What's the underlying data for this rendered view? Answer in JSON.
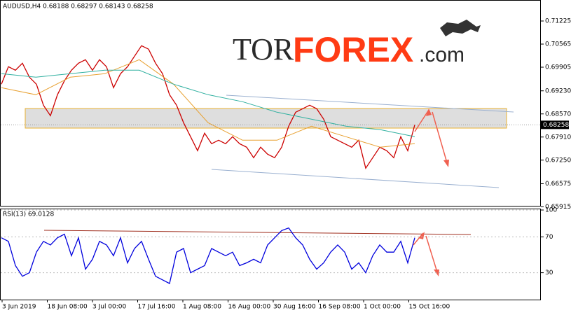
{
  "chart_data": [
    {
      "type": "line",
      "title": "AUDUSD,H4 0.68188 0.68297 0.68143 0.68258",
      "annotations": [
        "TOR",
        "FOREX",
        ".com"
      ],
      "current_price": {
        "value": 0.68258,
        "label": "0.68258"
      },
      "ylim": [
        0.65905,
        0.71825
      ],
      "yticks": [
        0.71225,
        0.70565,
        0.69905,
        {
          "value": 0.6923,
          "label": "0.69230"
        },
        {
          "value": 0.6857,
          "label": "0.68570"
        },
        {
          "value": 0.6791,
          "label": "0.67910"
        },
        {
          "value": 0.6725,
          "label": "0.67250"
        },
        0.66575,
        0.65915
      ],
      "series": [
        {
          "color": "#cc0000",
          "values": [
            0.6942,
            0.6992,
            0.6982,
            0.7002,
            0.6962,
            0.6942,
            0.6882,
            0.6852,
            0.6912,
            0.6952,
            0.6982,
            0.7002,
            0.7012,
            0.6982,
            0.7012,
            0.6992,
            0.6932,
            0.6972,
            0.6992,
            0.7022,
            0.7052,
            0.7042,
            0.7002,
            0.6972,
            0.6912,
            0.6882,
            0.6832,
            0.6792,
            0.6752,
            0.6802,
            0.6772,
            0.6782,
            0.6772,
            0.6792,
            0.6772,
            0.6762,
            0.6732,
            0.6762,
            0.6742,
            0.6732,
            0.6762,
            0.6822,
            0.6862,
            0.6872,
            0.6882,
            0.6872,
            0.6842,
            0.6792,
            0.6782,
            0.6772,
            0.6762,
            0.6782,
            0.6702,
            0.6732,
            0.6762,
            0.6752,
            0.6732,
            0.6792,
            0.6752,
            0.6826
          ]
        },
        {
          "color": "#e8a030",
          "values": [
            0.6932,
            0.6912,
            0.6962,
            0.6972,
            0.7012,
            0.6942,
            0.6832,
            0.6782,
            0.6782,
            0.6822,
            0.6792,
            0.6762,
            0.6772
          ]
        },
        {
          "color": "#30b0a0",
          "values": [
            0.6972,
            0.6962,
            0.6972,
            0.6982,
            0.6982,
            0.6942,
            0.6912,
            0.6892,
            0.6862,
            0.6842,
            0.6822,
            0.6812,
            0.6792
          ]
        }
      ]
    },
    {
      "type": "line",
      "title": "RSI(13) 69.0128",
      "ylim": [
        0,
        100
      ],
      "yticks": [
        100,
        70,
        30
      ],
      "xticks": [
        "3 Jun 2019",
        "18 Jun 08:00",
        "3 Jul 00:00",
        "17 Jul 16:00",
        "1 Aug 08:00",
        "16 Aug 00:00",
        "30 Aug 16:00",
        "16 Sep 08:00",
        "1 Oct 00:00",
        "15 Oct 16:00"
      ],
      "series": [
        {
          "color": "#0000dd",
          "values": [
            69,
            65,
            38,
            26,
            30,
            53,
            65,
            61,
            69,
            73,
            49,
            69,
            34,
            45,
            65,
            61,
            49,
            69,
            41,
            57,
            65,
            45,
            26,
            22,
            18,
            53,
            57,
            30,
            34,
            38,
            57,
            53,
            49,
            53,
            38,
            41,
            45,
            41,
            61,
            69,
            77,
            80,
            69,
            61,
            45,
            34,
            41,
            53,
            61,
            53,
            34,
            41,
            30,
            49,
            61,
            53,
            53,
            65,
            41,
            69
          ]
        }
      ]
    }
  ]
}
